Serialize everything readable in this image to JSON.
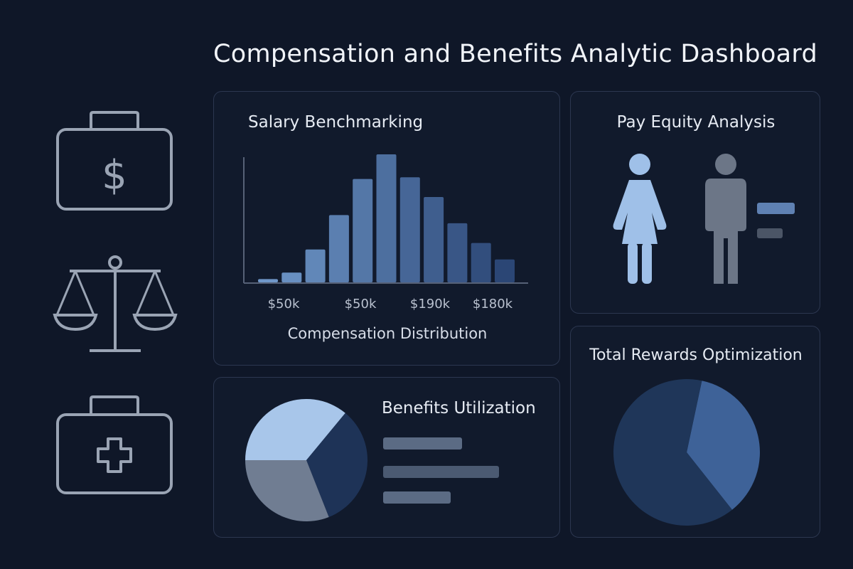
{
  "header": {
    "title": "Compensation and Benefits Analytic Dashboard"
  },
  "sidebar": {
    "icons": [
      "briefcase-dollar-icon",
      "scales-icon",
      "medical-kit-icon"
    ]
  },
  "salary_panel": {
    "title": "Salary Benchmarking",
    "caption": "Compensation Distribution"
  },
  "pay_equity_panel": {
    "title": "Pay Equity Analysis",
    "icons": [
      "female-figure-icon",
      "male-figure-icon"
    ]
  },
  "benefits_panel": {
    "title": "Benefits Utilization"
  },
  "rewards_panel": {
    "title": "Total Rewards Optimization"
  },
  "colors": {
    "background": "#0f1728",
    "panel_border": "#2c3750",
    "bar_light": "#6f97c9",
    "bar_dark": "#2b4675",
    "icon_stroke": "#9aa4b4"
  },
  "chart_data": [
    {
      "type": "bar",
      "x_tick_labels": [
        "$50k",
        "$50k",
        "$190k",
        "$180k"
      ],
      "values": [
        2,
        6,
        20,
        41,
        63,
        78,
        64,
        52,
        36,
        24,
        14
      ],
      "xlabel": "Compensation Distribution"
    },
    {
      "type": "pie",
      "slices": [
        {
          "value": 36,
          "color": "#a8c6ea"
        },
        {
          "value": 33,
          "color": "#1e3357"
        },
        {
          "value": 31,
          "color": "#707d92"
        }
      ],
      "legend_bars": [
        {
          "value": 0.68,
          "color": "#5b6b84"
        },
        {
          "value": 1.0,
          "color": "#4b5a72"
        },
        {
          "value": 0.58,
          "color": "#5b6b84"
        }
      ]
    },
    {
      "type": "pie",
      "slices": [
        {
          "value": 36,
          "color": "#3e6298"
        },
        {
          "value": 64,
          "color": "#1f3659"
        }
      ]
    }
  ]
}
